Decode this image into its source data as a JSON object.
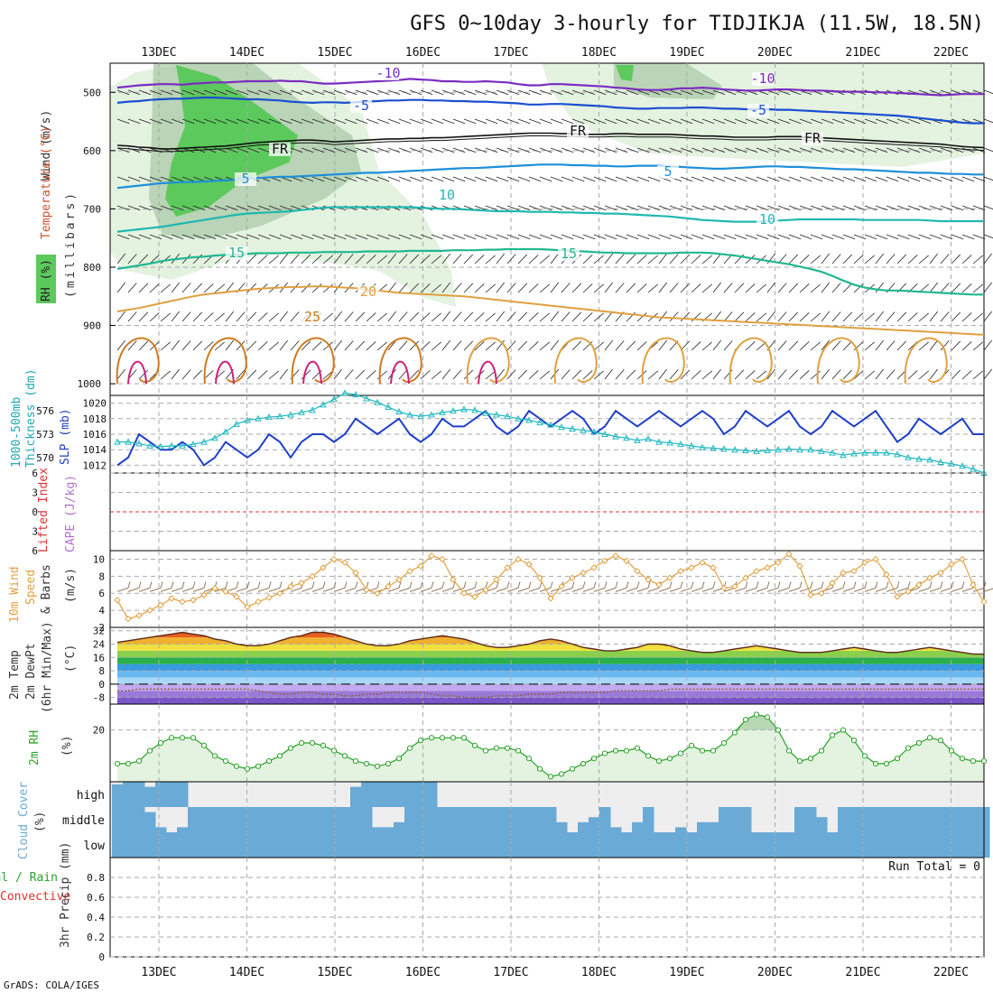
{
  "title": "GFS 0~10day 3-hourly for TIDJIKJA (11.5W, 18.5N)",
  "credit": "GrADS: COLA/IGES",
  "dates": [
    "13DEC",
    "14DEC",
    "15DEC",
    "16DEC",
    "17DEC",
    "18DEC",
    "19DEC",
    "20DEC",
    "21DEC",
    "22DEC"
  ],
  "colors": {
    "grid": "#aaaaaa",
    "rh_light": "#e4f2e0",
    "rh_mid": "#a6c8a4",
    "rh_high": "#5cc95c",
    "barb": "#222222",
    "slp": "#1e3fc8",
    "thick": "#20b8c0",
    "wind10": "#e0a040",
    "rh2m": "#2aa22a",
    "cloud": "#6aaad6",
    "cloud_bg": "#eeeeee",
    "li_zero": "#e03030",
    "dewpt": "#8a5a2a",
    "frz": "#111111"
  },
  "panels": {
    "upper": {
      "axis_labels": [
        "Wind (m/s)",
        "Temperature (°C)",
        "RH (%)",
        "(millibars)"
      ],
      "rh_legend": "RH (%)",
      "ticks": [
        "500",
        "600",
        "700",
        "800",
        "900",
        "1000"
      ],
      "contour_labels": [
        "-10",
        "-10",
        "-5",
        "-5",
        "FR",
        "FR",
        "FR",
        "5",
        "5",
        "10",
        "10",
        "15",
        "15",
        "20",
        "25"
      ]
    },
    "slp": {
      "left_labels": [
        "1000-500mb",
        "Thickness (dm)"
      ],
      "right_label": "SLP (mb)",
      "left_ticks": [
        "576",
        "573",
        "570"
      ],
      "right_ticks": [
        "1020",
        "1018",
        "1016",
        "1014",
        "1012"
      ]
    },
    "li": {
      "left_label": "Lifted Index",
      "right_label": "CAPE (J/kg)",
      "ticks": [
        "6",
        "3",
        "0",
        "3",
        "6"
      ]
    },
    "wind10": {
      "labels": [
        "10m Wind",
        "Speed",
        "& Barbs"
      ],
      "unit": "(m/s)",
      "ticks": [
        "10",
        "8",
        "6",
        "4",
        "2"
      ]
    },
    "temp": {
      "labels": [
        "2m Temp",
        "2m DewPt",
        "(6hr Min/Max)"
      ],
      "unit": "(°C)",
      "ticks": [
        "32",
        "24",
        "16",
        "8",
        "0",
        "-8"
      ]
    },
    "rh2m": {
      "label": "2m RH",
      "unit": "(%)",
      "ticks": [
        "20"
      ]
    },
    "cloud": {
      "label": "Cloud Cover",
      "unit": "(%)",
      "levels": [
        "high",
        "middle",
        "low"
      ]
    },
    "precip": {
      "labels": [
        "Total / Rain",
        "Convective"
      ],
      "axis": "3hr Precip (mm)",
      "ticks": [
        "0.8",
        "0.6",
        "0.4",
        "0.2",
        "0"
      ],
      "run_total": "Run Total = 0"
    }
  },
  "chart_data": {
    "type": "line",
    "x_start": "12DEC 12Z",
    "x_step_hours": 3,
    "contours": {
      "temp_-10": [
        492,
        490,
        488,
        487,
        486,
        486,
        487,
        485,
        484,
        483,
        483,
        482,
        481,
        481,
        481,
        480,
        481,
        481,
        483,
        485,
        485,
        484,
        483,
        482,
        481,
        480,
        479,
        477,
        478,
        479,
        481,
        481,
        482,
        482,
        481,
        482,
        483,
        486,
        488,
        488,
        486,
        486,
        487,
        488,
        489,
        490,
        492,
        493,
        495,
        496,
        496,
        495,
        493,
        493,
        492,
        493,
        495,
        496,
        497,
        497,
        496,
        495,
        495,
        496,
        497,
        497,
        498,
        499,
        499,
        499,
        500,
        500,
        501,
        502,
        503,
        504,
        505,
        504,
        503,
        503,
        503
      ],
      "temp_-5": [
        518,
        516,
        515,
        513,
        512,
        511,
        511,
        510,
        509,
        509,
        510,
        511,
        512,
        512,
        513,
        514,
        516,
        517,
        518,
        517,
        517,
        518,
        517,
        516,
        515,
        514,
        514,
        513,
        513,
        514,
        514,
        515,
        515,
        516,
        516,
        517,
        518,
        519,
        521,
        521,
        520,
        520,
        521,
        522,
        523,
        524,
        526,
        527,
        528,
        528,
        527,
        527,
        527,
        526,
        526,
        527,
        528,
        528,
        529,
        529,
        529,
        530,
        530,
        531,
        532,
        533,
        534,
        535,
        536,
        537,
        538,
        539,
        540,
        542,
        544,
        546,
        548,
        550,
        552,
        553,
        553
      ],
      "temp_fr": [
        591,
        592,
        594,
        595,
        597,
        597,
        596,
        595,
        594,
        593,
        592,
        590,
        588,
        586,
        585,
        584,
        583,
        582,
        582,
        583,
        585,
        584,
        583,
        582,
        581,
        580,
        580,
        579,
        579,
        578,
        578,
        577,
        576,
        575,
        574,
        573,
        572,
        571,
        570,
        570,
        570,
        571,
        571,
        572,
        572,
        572,
        571,
        571,
        572,
        572,
        572,
        572,
        573,
        574,
        575,
        575,
        576,
        577,
        577,
        577,
        577,
        576,
        576,
        576,
        578,
        578,
        579,
        580,
        581,
        582,
        583,
        584,
        585,
        586,
        587,
        588,
        589,
        591,
        593,
        594,
        595
      ],
      "temp_5": [
        664,
        662,
        660,
        658,
        656,
        655,
        654,
        654,
        653,
        652,
        651,
        650,
        648,
        647,
        646,
        645,
        645,
        644,
        643,
        642,
        641,
        640,
        639,
        638,
        638,
        637,
        636,
        635,
        634,
        633,
        632,
        631,
        630,
        630,
        629,
        628,
        627,
        626,
        625,
        624,
        624,
        624,
        625,
        625,
        626,
        626,
        627,
        627,
        626,
        626,
        626,
        627,
        628,
        629,
        630,
        631,
        631,
        630,
        629,
        628,
        627,
        627,
        628,
        628,
        629,
        630,
        631,
        632,
        632,
        633,
        634,
        635,
        636,
        637,
        638,
        638,
        639,
        640,
        640,
        641,
        641
      ],
      "temp_10": [
        739,
        737,
        735,
        733,
        731,
        728,
        725,
        722,
        719,
        716,
        713,
        710,
        708,
        707,
        706,
        705,
        704,
        702,
        700,
        698,
        697,
        697,
        697,
        697,
        697,
        697,
        697,
        697,
        698,
        699,
        700,
        700,
        701,
        702,
        703,
        704,
        704,
        704,
        705,
        705,
        705,
        706,
        706,
        707,
        707,
        708,
        708,
        709,
        710,
        711,
        712,
        713,
        715,
        717,
        719,
        720,
        721,
        722,
        722,
        722,
        721,
        720,
        719,
        718,
        718,
        718,
        718,
        718,
        718,
        719,
        719,
        719,
        719,
        719,
        719,
        720,
        721,
        721,
        721,
        721,
        721
      ],
      "temp_15": [
        803,
        800,
        797,
        794,
        790,
        787,
        785,
        783,
        782,
        780,
        779,
        778,
        777,
        776,
        776,
        776,
        775,
        775,
        775,
        774,
        774,
        774,
        774,
        773,
        773,
        773,
        773,
        772,
        772,
        772,
        772,
        771,
        771,
        771,
        770,
        770,
        769,
        769,
        769,
        769,
        770,
        771,
        772,
        773,
        774,
        775,
        775,
        776,
        776,
        776,
        776,
        776,
        775,
        775,
        775,
        776,
        778,
        780,
        783,
        786,
        789,
        792,
        795,
        799,
        803,
        808,
        815,
        823,
        830,
        835,
        838,
        840,
        840,
        841,
        842,
        843,
        844,
        845,
        846,
        847,
        847
      ],
      "temp_20": [
        876,
        873,
        870,
        866,
        862,
        858,
        854,
        850,
        847,
        845,
        843,
        841,
        839,
        837,
        836,
        835,
        834,
        834,
        833,
        833,
        834,
        835,
        836,
        838,
        840,
        842,
        844,
        845,
        846,
        847,
        848,
        849,
        850,
        852,
        854,
        856,
        858,
        860,
        862,
        864,
        866,
        868,
        870,
        872,
        874,
        876,
        878,
        880,
        882,
        884,
        886,
        887,
        888,
        889,
        890,
        891,
        892,
        893,
        894,
        895,
        896,
        897,
        898,
        899,
        900,
        901,
        902,
        903,
        904,
        905,
        906,
        907,
        908,
        909,
        910,
        911,
        912,
        913,
        914,
        915,
        916
      ]
    },
    "pressure_ticks": [
      500,
      600,
      700,
      800,
      900,
      1000
    ],
    "slp": [
      1012,
      1013,
      1016,
      1015,
      1014,
      1014,
      1015,
      1014,
      1012,
      1013,
      1015,
      1014,
      1013,
      1014,
      1016,
      1015,
      1013,
      1015,
      1016,
      1016,
      1015,
      1016,
      1018,
      1017,
      1016,
      1017,
      1018,
      1016,
      1015,
      1016,
      1018,
      1017,
      1017,
      1018,
      1019,
      1017,
      1016,
      1017,
      1019,
      1018,
      1017,
      1018,
      1019,
      1018,
      1016,
      1017,
      1019,
      1018,
      1017,
      1018,
      1019,
      1018,
      1017,
      1018,
      1019,
      1018,
      1016,
      1017,
      1019,
      1018,
      1017,
      1018,
      1019,
      1017,
      1016,
      1017,
      1019,
      1018,
      1017,
      1018,
      1019,
      1017,
      1015,
      1016,
      1018,
      1017,
      1016,
      1017,
      1018,
      1016,
      1016
    ],
    "thickness": [
      572.0,
      572.0,
      571.8,
      571.5,
      571.4,
      571.5,
      571.5,
      571.7,
      572.0,
      572.5,
      573.3,
      574.3,
      574.8,
      575.0,
      575.2,
      575.3,
      575.5,
      575.8,
      576.1,
      576.8,
      577.5,
      578.3,
      578.1,
      577.6,
      577.1,
      576.5,
      575.9,
      575.5,
      575.3,
      575.5,
      575.8,
      576.0,
      576.2,
      576.1,
      575.7,
      575.5,
      575.3,
      575.0,
      574.8,
      574.5,
      574.2,
      573.9,
      573.7,
      573.5,
      573.3,
      573.0,
      572.7,
      572.5,
      572.2,
      572.4,
      572.0,
      571.9,
      571.7,
      571.5,
      571.3,
      571.2,
      571.1,
      571.0,
      570.9,
      570.8,
      570.9,
      571.0,
      571.1,
      571.0,
      571.0,
      570.8,
      570.6,
      570.3,
      570.5,
      570.6,
      570.6,
      570.6,
      570.4,
      570.0,
      569.8,
      569.7,
      569.4,
      569.2,
      568.9,
      568.5,
      568.0
    ],
    "wind10": [
      5.2,
      3.0,
      3.4,
      4.0,
      4.6,
      5.4,
      5.0,
      5.2,
      5.8,
      6.6,
      6.2,
      5.6,
      4.4,
      5.0,
      5.5,
      6.0,
      6.8,
      7.2,
      8.0,
      9.0,
      10.0,
      9.6,
      8.4,
      6.4,
      6.0,
      6.8,
      7.6,
      8.6,
      9.2,
      10.4,
      10.0,
      7.6,
      6.0,
      5.6,
      6.4,
      7.6,
      9.0,
      10.0,
      9.4,
      7.8,
      5.4,
      6.8,
      7.8,
      8.4,
      9.0,
      9.8,
      10.4,
      9.8,
      8.6,
      7.6,
      7.0,
      7.8,
      8.6,
      9.0,
      9.6,
      9.0,
      6.6,
      6.8,
      7.8,
      8.6,
      9.0,
      9.6,
      10.6,
      9.2,
      5.8,
      6.0,
      7.2,
      8.4,
      8.6,
      9.6,
      10.0,
      8.2,
      5.6,
      6.2,
      7.0,
      7.8,
      8.4,
      9.4,
      10.0,
      7.0,
      5.0
    ],
    "temp2m": [
      25,
      26,
      27,
      28,
      29,
      30,
      31,
      30,
      29,
      27,
      26,
      24,
      23,
      23,
      24,
      26,
      28,
      29,
      31,
      31,
      30,
      28,
      26,
      24,
      23,
      23,
      24,
      26,
      27,
      28,
      29,
      28,
      27,
      25,
      23,
      22,
      22,
      23,
      24,
      26,
      27,
      26,
      24,
      22,
      21,
      20,
      20,
      21,
      22,
      24,
      24,
      23,
      21,
      20,
      19,
      19,
      20,
      21,
      22,
      23,
      22,
      21,
      20,
      19,
      19,
      19,
      20,
      21,
      22,
      21,
      20,
      19,
      19,
      20,
      21,
      22,
      21,
      20,
      19,
      18,
      18
    ],
    "dewpt2m": [
      -4,
      -4,
      -3,
      -3,
      -3,
      -3,
      -3,
      -3,
      -3,
      -3,
      -3,
      -3,
      -3,
      -4,
      -5,
      -6,
      -6,
      -5,
      -5,
      -6,
      -6,
      -7,
      -7,
      -6,
      -6,
      -5,
      -5,
      -5,
      -5,
      -6,
      -7,
      -7,
      -8,
      -8,
      -8,
      -7,
      -7,
      -7,
      -6,
      -6,
      -6,
      -5,
      -5,
      -5,
      -5,
      -5,
      -4,
      -4,
      -4,
      -4,
      -4,
      -3,
      -3,
      -3,
      -3,
      -3,
      -3,
      -3,
      -3,
      -3,
      -3,
      -3,
      -3,
      -3,
      -3,
      -3,
      -3,
      -3,
      -3,
      -3,
      -3,
      -3,
      -3,
      -3,
      -3,
      -3,
      -3,
      -3,
      -3,
      -3,
      -3
    ],
    "rh2m": [
      7,
      7,
      8,
      12,
      15,
      17,
      17,
      17,
      14,
      10,
      8,
      6,
      5,
      6,
      8,
      10,
      13,
      15,
      15,
      14,
      12,
      10,
      8,
      7,
      6,
      7,
      9,
      13,
      16,
      17,
      17,
      17,
      17,
      14,
      12,
      13,
      13,
      12,
      9,
      5,
      2,
      3,
      5,
      7,
      9,
      11,
      12,
      12,
      13,
      10,
      8,
      9,
      11,
      14,
      12,
      12,
      15,
      19,
      24,
      26,
      25,
      20,
      12,
      8,
      9,
      12,
      18,
      20,
      16,
      10,
      7,
      7,
      9,
      13,
      15,
      17,
      16,
      12,
      9,
      8,
      8
    ],
    "cloud_high": [
      90,
      100,
      100,
      80,
      100,
      100,
      100,
      0,
      0,
      0,
      0,
      0,
      0,
      0,
      0,
      0,
      0,
      0,
      0,
      0,
      0,
      0,
      80,
      100,
      100,
      100,
      100,
      100,
      100,
      100,
      0,
      0,
      0,
      0,
      0,
      0,
      0,
      0,
      0,
      0,
      0,
      0,
      0,
      0,
      0,
      0,
      0,
      0,
      0,
      0,
      0,
      0,
      0,
      0,
      0,
      0,
      0,
      0,
      0,
      0,
      0,
      0,
      0,
      0,
      0,
      0,
      0,
      0,
      0,
      0,
      0,
      0,
      0,
      0,
      0,
      0,
      0,
      0,
      0,
      0,
      0
    ],
    "cloud_mid": [
      100,
      100,
      100,
      80,
      20,
      0,
      20,
      100,
      100,
      100,
      100,
      100,
      100,
      100,
      100,
      100,
      100,
      100,
      100,
      100,
      100,
      100,
      100,
      100,
      20,
      20,
      40,
      100,
      100,
      100,
      100,
      100,
      100,
      100,
      100,
      100,
      100,
      100,
      100,
      100,
      100,
      40,
      0,
      40,
      60,
      100,
      20,
      0,
      40,
      100,
      0,
      0,
      20,
      0,
      40,
      40,
      100,
      100,
      100,
      0,
      0,
      0,
      0,
      100,
      100,
      60,
      0,
      100,
      100,
      100,
      100,
      100,
      100,
      100,
      100,
      100,
      100,
      100,
      100,
      100,
      100
    ],
    "cloud_low": [
      100,
      100,
      100,
      100,
      100,
      100,
      100,
      100,
      100,
      100,
      100,
      100,
      100,
      100,
      100,
      100,
      100,
      100,
      100,
      100,
      100,
      100,
      100,
      100,
      100,
      100,
      100,
      100,
      100,
      100,
      100,
      100,
      100,
      100,
      100,
      100,
      100,
      100,
      100,
      100,
      100,
      100,
      100,
      100,
      100,
      100,
      100,
      100,
      100,
      100,
      100,
      100,
      100,
      100,
      100,
      100,
      100,
      100,
      100,
      100,
      100,
      100,
      100,
      100,
      100,
      100,
      100,
      100,
      100,
      100,
      100,
      100,
      100,
      100,
      100,
      100,
      100,
      100,
      100,
      100,
      100
    ],
    "precip3hr": [
      0,
      0,
      0,
      0,
      0,
      0,
      0,
      0,
      0,
      0,
      0,
      0,
      0,
      0,
      0,
      0,
      0,
      0,
      0,
      0,
      0,
      0,
      0,
      0,
      0,
      0,
      0,
      0,
      0,
      0,
      0,
      0,
      0,
      0,
      0,
      0,
      0,
      0,
      0,
      0,
      0,
      0,
      0,
      0,
      0,
      0,
      0,
      0,
      0,
      0,
      0,
      0,
      0,
      0,
      0,
      0,
      0,
      0,
      0,
      0,
      0,
      0,
      0,
      0,
      0,
      0,
      0,
      0,
      0,
      0,
      0,
      0,
      0,
      0,
      0,
      0,
      0,
      0,
      0,
      0,
      0
    ],
    "run_total_precip": 0,
    "ranges": {
      "pressure": [
        450,
        1020
      ],
      "slp": [
        1011,
        1021
      ],
      "thickness": [
        568,
        578
      ],
      "lifted_index": [
        -6,
        6
      ],
      "wind10": [
        2,
        11
      ],
      "temp": [
        -12,
        34
      ],
      "rh2m": [
        0,
        30
      ],
      "precip": [
        0,
        1
      ]
    }
  }
}
